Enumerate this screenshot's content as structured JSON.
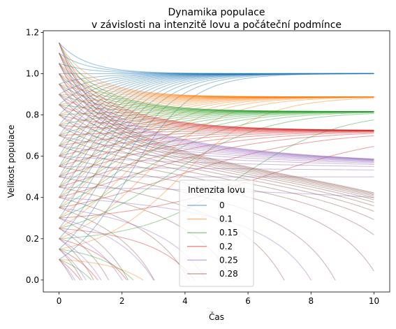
{
  "chart_data": {
    "type": "line",
    "title": "Dynamika populace\nv závislosti na intenzitě lovu a počáteční podmínce",
    "xlabel": "Čas",
    "ylabel": "Velikost populace",
    "xlim": [
      -0.5,
      10.5
    ],
    "ylim": [
      -0.058,
      1.208
    ],
    "x_ticks": [
      0,
      2,
      4,
      6,
      8,
      10
    ],
    "x_tick_labels": [
      "0",
      "2",
      "4",
      "6",
      "8",
      "10"
    ],
    "y_ticks": [
      0.0,
      0.2,
      0.4,
      0.6,
      0.8,
      1.0,
      1.2
    ],
    "y_tick_labels": [
      "0.0",
      "0.2",
      "0.4",
      "0.6",
      "0.8",
      "1.0",
      "1.2"
    ],
    "grid": false,
    "legend": {
      "title": "Intenzita lovu",
      "placement": "lower-center"
    },
    "initial_conditions": [
      0.1,
      0.15,
      0.2,
      0.25,
      0.3,
      0.35,
      0.4,
      0.45,
      0.5,
      0.55,
      0.6,
      0.65,
      0.7,
      0.75,
      0.8,
      0.85,
      0.9,
      0.95,
      1.0,
      1.05,
      1.1,
      1.15
    ],
    "t_end": 10,
    "series": [
      {
        "name": "0",
        "harvest": 0,
        "color": "#1f77b4"
      },
      {
        "name": "0.1",
        "harvest": 0.1,
        "color": "#ff7f0e"
      },
      {
        "name": "0.15",
        "harvest": 0.15,
        "color": "#2ca02c"
      },
      {
        "name": "0.2",
        "harvest": 0.2,
        "color": "#d62728"
      },
      {
        "name": "0.25",
        "harvest": 0.25,
        "color": "#9467bd"
      },
      {
        "name": "0.28",
        "harvest": 0.28,
        "color": "#8c564b"
      }
    ]
  }
}
